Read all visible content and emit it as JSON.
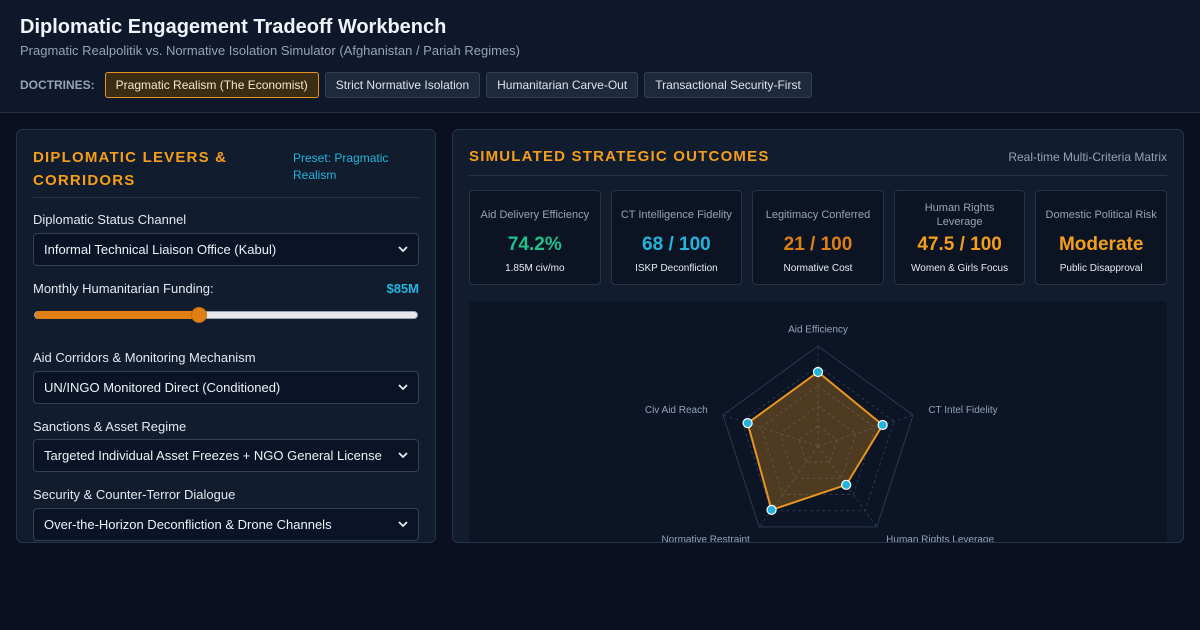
{
  "header": {
    "title": "Diplomatic Engagement Tradeoff Workbench",
    "subtitle": "Pragmatic Realpolitik vs. Normative Isolation Simulator (Afghanistan / Pariah Regimes)",
    "doctrines_label": "DOCTRINES:",
    "doctrines": [
      {
        "label": "Pragmatic Realism (The Economist)",
        "active": true
      },
      {
        "label": "Strict Normative Isolation",
        "active": false
      },
      {
        "label": "Humanitarian Carve-Out",
        "active": false
      },
      {
        "label": "Transactional Security-First",
        "active": false
      }
    ]
  },
  "levers": {
    "title": "Diplomatic Levers & Corridors",
    "preset": "Preset: Pragmatic Realism",
    "status_label": "Diplomatic Status Channel",
    "status_value": "Informal Technical Liaison Office (Kabul)",
    "funding_label": "Monthly Humanitarian Funding:",
    "funding_value": "$85M",
    "funding_fraction": 0.43,
    "corridors_label": "Aid Corridors & Monitoring Mechanism",
    "corridors_value": "UN/INGO Monitored Direct (Conditioned)",
    "sanctions_label": "Sanctions & Asset Regime",
    "sanctions_value": "Targeted Individual Asset Freezes + NGO General License",
    "security_label": "Security & Counter-Terror Dialogue",
    "security_value": "Over-the-Horizon Deconfliction & Drone Channels"
  },
  "outcomes": {
    "title": "Simulated Strategic Outcomes",
    "matrix_tag": "Real-time Multi-Criteria Matrix",
    "metrics": [
      {
        "label": "Aid Delivery Efficiency",
        "value": "74.2%",
        "sub": "1.85M civ/mo",
        "color": "#22c08a"
      },
      {
        "label": "CT Intelligence Fidelity",
        "value": "68 / 100",
        "sub": "ISKP Deconfliction",
        "color": "#22b4dc"
      },
      {
        "label": "Legitimacy Conferred",
        "value": "21 / 100",
        "sub": "Normative Cost",
        "color": "#e07f14"
      },
      {
        "label": "Human Rights Leverage",
        "value": "47.5 / 100",
        "sub": "Women & Girls Focus",
        "color": "#f59e1b"
      },
      {
        "label": "Domestic Political Risk",
        "value": "Moderate",
        "sub": "Public Disapproval",
        "color": "#f59e1b"
      }
    ]
  },
  "radar": {
    "axes": [
      "Aid Efficiency",
      "CT Intel Fidelity",
      "Human Rights Leverage",
      "Normative Restraint",
      "Civ Aid Reach"
    ],
    "values": [
      74,
      68,
      48,
      79,
      74
    ],
    "max": 100,
    "fill_color": "#e8951f",
    "point_color": "#22b4dc"
  }
}
